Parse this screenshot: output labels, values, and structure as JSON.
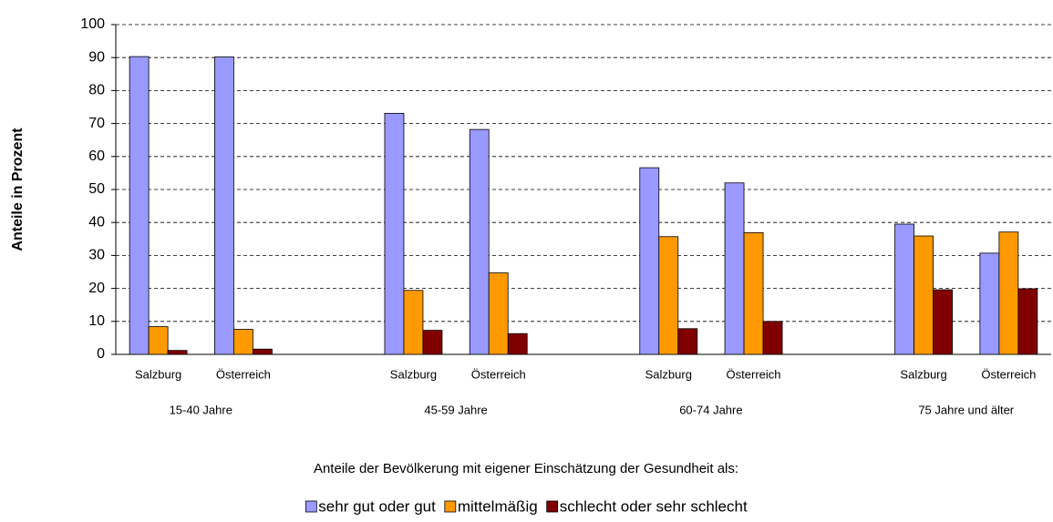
{
  "chart_data": {
    "type": "bar",
    "y_axis_label": "Anteile in Prozent",
    "x_axis_label": "Anteile der Bevölkerung mit eigener Einschätzung der Gesundheit als:",
    "categories": [
      "Salzburg",
      "Österreich",
      null,
      "Salzburg",
      "Österreich",
      null,
      "Salzburg",
      "Österreich",
      null,
      "Salzburg",
      "Österreich"
    ],
    "group_labels": [
      "15-40 Jahre",
      "45-59 Jahre",
      "60-74 Jahre",
      "75 Jahre und älter"
    ],
    "series": [
      {
        "name": "sehr gut oder gut",
        "color": "#9999ff",
        "values": [
          90.3,
          90.2,
          null,
          73.1,
          68.2,
          null,
          56.6,
          52.0,
          null,
          39.5,
          30.7
        ]
      },
      {
        "name": "mittelmäßig",
        "color": "#ff9900",
        "values": [
          8.4,
          7.6,
          null,
          19.4,
          24.7,
          null,
          35.7,
          36.9,
          null,
          35.9,
          37.1
        ]
      },
      {
        "name": "schlecht oder sehr schlecht",
        "color": "#800000",
        "values": [
          1.2,
          1.6,
          null,
          7.3,
          6.3,
          null,
          7.8,
          10.0,
          null,
          19.6,
          19.9
        ]
      }
    ],
    "ylim": [
      0,
      100
    ],
    "yticks": [
      0,
      10,
      20,
      30,
      40,
      50,
      60,
      70,
      80,
      90,
      100
    ],
    "grid": true,
    "legend": "bottom"
  }
}
